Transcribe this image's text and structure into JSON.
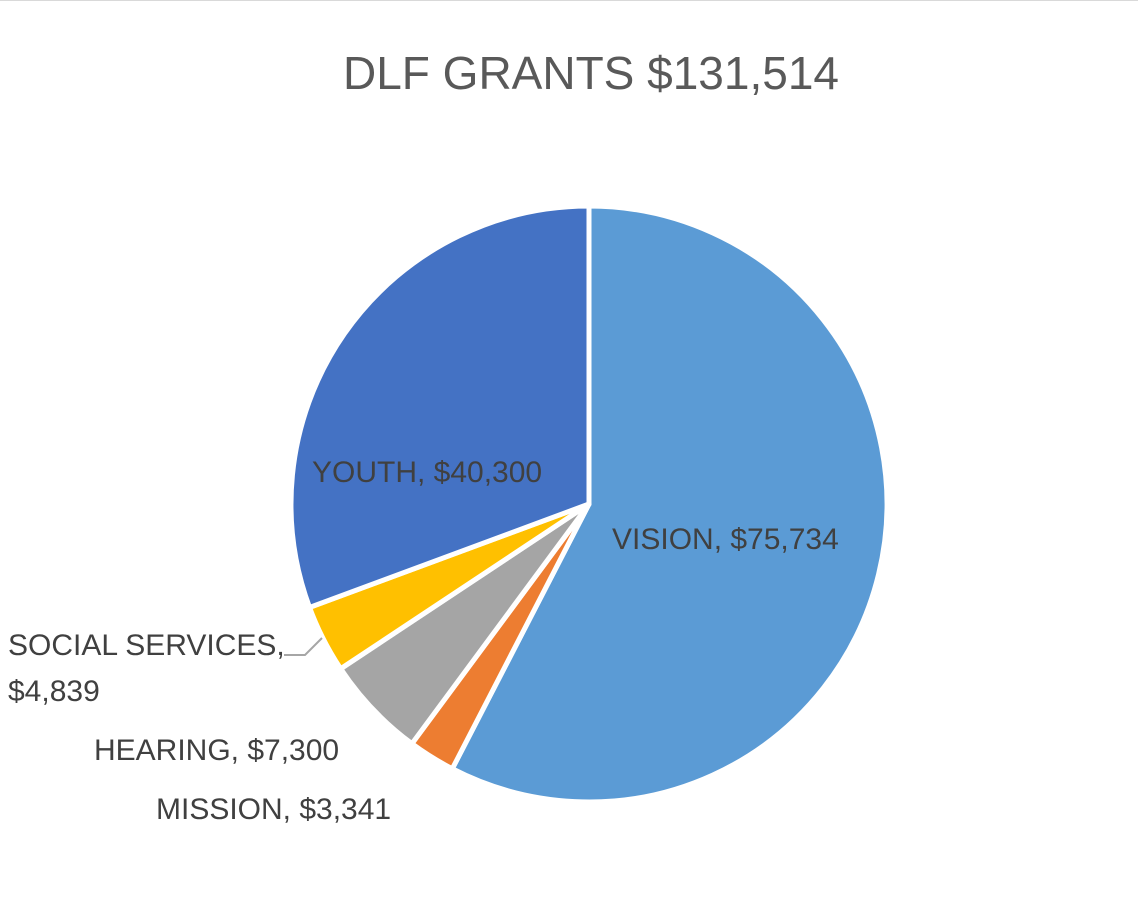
{
  "chart_data": {
    "type": "pie",
    "title": "DLF GRANTS $131,514",
    "slices": [
      {
        "category": "VISION",
        "value": 75734,
        "value_label": "$75,734",
        "color": "#5b9bd5"
      },
      {
        "category": "MISSION",
        "value": 3341,
        "value_label": "$3,341",
        "color": "#ed7d31"
      },
      {
        "category": "HEARING",
        "value": 7300,
        "value_label": "$7,300",
        "color": "#a5a5a5"
      },
      {
        "category": "SOCIAL SERVICES",
        "value": 4839,
        "value_label": "$4,839",
        "color": "#ffc000"
      },
      {
        "category": "YOUTH",
        "value": 40300,
        "value_label": "$40,300",
        "color": "#4472c4"
      }
    ],
    "data_labels": [
      {
        "lines": [
          "VISION,  $75,734"
        ]
      },
      {
        "lines": [
          "MISSION,  $3,341"
        ]
      },
      {
        "lines": [
          "HEARING,  $7,300"
        ]
      },
      {
        "lines": [
          "SOCIAL SERVICES,",
          "$4,839"
        ]
      },
      {
        "lines": [
          "YOUTH,  $40,300"
        ]
      }
    ],
    "legend": "none"
  }
}
